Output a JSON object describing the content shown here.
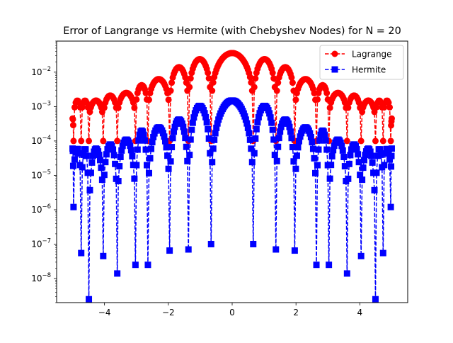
{
  "chart_data": {
    "type": "line",
    "title": "Error of Langrange vs Hermite (with Chebyshev Nodes) for N = 20",
    "xlabel": "",
    "ylabel": "",
    "xlim": [
      -5.5,
      5.5
    ],
    "ylim": [
      2e-09,
      0.08
    ],
    "yscale": "log",
    "grid": false,
    "legend_position": "upper-right",
    "x_ticks": [
      -4,
      -2,
      0,
      2,
      4
    ],
    "x_tick_labels": [
      "−4",
      "−2",
      "0",
      "2",
      "4"
    ],
    "y_ticks": [
      1e-08,
      1e-07,
      1e-06,
      1e-05,
      0.0001,
      0.001,
      0.01
    ],
    "y_tick_labels": [
      {
        "base": "10",
        "exp": "−8"
      },
      {
        "base": "10",
        "exp": "−7"
      },
      {
        "base": "10",
        "exp": "−6"
      },
      {
        "base": "10",
        "exp": "−5"
      },
      {
        "base": "10",
        "exp": "−4"
      },
      {
        "base": "10",
        "exp": "−3"
      },
      {
        "base": "10",
        "exp": "−2"
      }
    ],
    "domain": [
      -5,
      5
    ],
    "nodes": [
      -4.97,
      -4.73,
      -4.49,
      -4.04,
      -3.6,
      -3.03,
      -2.64,
      -1.96,
      -1.37,
      -0.66,
      0.66,
      1.37,
      1.96,
      2.64,
      3.03,
      3.6,
      4.04,
      4.49,
      4.73,
      4.97
    ],
    "series": [
      {
        "name": "Lagrange",
        "color": "#ff0000",
        "marker": "circle",
        "linestyle": "dashed",
        "arch_peaks": [
          0.0015,
          0.0015,
          0.0015,
          0.0021,
          0.0025,
          0.0042,
          0.0063,
          0.014,
          0.024,
          0.036,
          0.024,
          0.014,
          0.0063,
          0.0042,
          0.0025,
          0.0021,
          0.0015,
          0.0015,
          0.0015
        ],
        "end_values": [
          0.00045,
          0.00045
        ],
        "node_minima": [
          0.0001,
          0.0001,
          0.0001,
          0.0001,
          0.0001,
          0.0001,
          0.0001,
          0.0001,
          0.0001,
          0.0001,
          0.0001,
          0.0001,
          0.0001,
          0.0001,
          0.0001,
          0.0001,
          0.0001,
          0.0001,
          0.0001,
          0.0001
        ]
      },
      {
        "name": "Hermite",
        "color": "#0000ff",
        "marker": "square",
        "linestyle": "dashed",
        "arch_peaks": [
          6e-05,
          6e-05,
          6e-05,
          8e-05,
          0.00011,
          0.0002,
          0.00025,
          0.00042,
          0.00105,
          0.0015,
          0.00105,
          0.00042,
          0.00025,
          0.0002,
          0.00011,
          8e-05,
          6e-05,
          6e-05,
          6e-05
        ],
        "end_values": [
          6e-05,
          6e-05
        ],
        "node_minima": [
          1.2e-06,
          5.5e-08,
          2.5e-09,
          4.5e-08,
          1.4e-08,
          2.5e-08,
          2.5e-08,
          6.5e-08,
          7e-08,
          1e-07,
          1e-07,
          7e-08,
          6.5e-08,
          2.5e-08,
          2.5e-08,
          1.4e-08,
          4.5e-08,
          2.5e-09,
          5.5e-08,
          1.2e-06
        ]
      }
    ]
  }
}
